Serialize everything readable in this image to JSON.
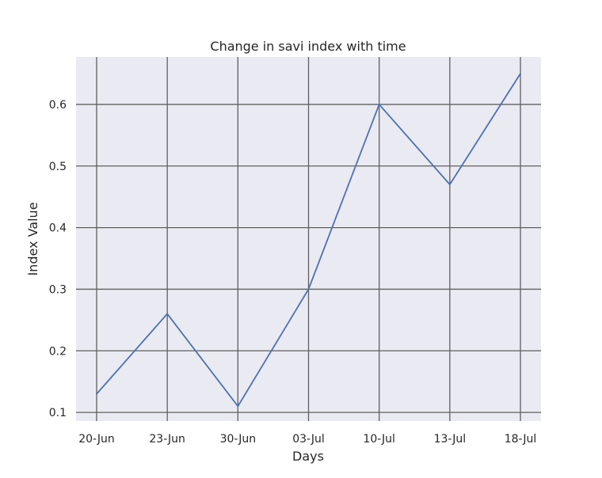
{
  "chart_data": {
    "type": "line",
    "title": "Change in savi index with time",
    "xlabel": "Days",
    "ylabel": "Index Value",
    "categories": [
      "20-Jun",
      "23-Jun",
      "30-Jun",
      "03-Jul",
      "10-Jul",
      "13-Jul",
      "18-Jul"
    ],
    "values": [
      0.13,
      0.26,
      0.11,
      0.3,
      0.6,
      0.47,
      0.65
    ],
    "yticks": [
      "0.1",
      "0.2",
      "0.3",
      "0.4",
      "0.5",
      "0.6"
    ],
    "ylim": [
      0.086,
      0.677
    ],
    "grid": true,
    "colors": {
      "line": "#4c72b0",
      "background": "#eaeaf2",
      "grid": "#5f5f5f"
    }
  }
}
